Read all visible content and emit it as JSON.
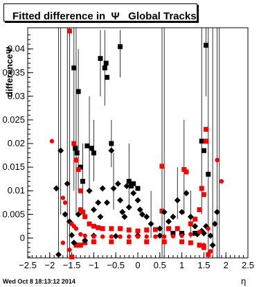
{
  "title": "Fitted difference in  Ψ   Global Tracks",
  "timestamp": "Wed Oct  8 18:13:12 2014",
  "chart_data": {
    "type": "scatter",
    "xlabel": "η",
    "ylabel": "differenceΨ",
    "xlim": [
      -2.5,
      2.5
    ],
    "ylim": [
      -0.0042,
      0.0445
    ],
    "x_ticks": [
      "−2.5",
      "−2",
      "−1.5",
      "−1",
      "−0.5",
      "0",
      "0.5",
      "1",
      "1.5",
      "2",
      "2.5"
    ],
    "y_ticks": [
      "0",
      "0.005",
      "0.01",
      "0.015",
      "0.02",
      "0.025",
      "0.03",
      "0.035",
      "0.04"
    ],
    "y_tick_values": [
      0,
      0.005,
      0.01,
      0.015,
      0.02,
      0.025,
      0.03,
      0.035,
      0.04
    ],
    "x_tick_values": [
      -2.5,
      -2,
      -1.5,
      -1,
      -0.5,
      0,
      0.5,
      1,
      1.5,
      2,
      2.5
    ],
    "series": [
      {
        "marker": "square",
        "color": "#000000",
        "points": [
          [
            -1.45,
            0.036
          ],
          [
            -1.35,
            0.031
          ],
          [
            -1.42,
            0.019
          ],
          [
            -1.38,
            0.018
          ],
          [
            -1.3,
            0.015
          ],
          [
            -1.25,
            0.012
          ],
          [
            -1.15,
            0.0195
          ],
          [
            -1.05,
            0.019
          ],
          [
            -1.0,
            0.018
          ],
          [
            -0.85,
            0.038
          ],
          [
            -0.75,
            0.036
          ],
          [
            -0.72,
            0.037
          ],
          [
            -0.7,
            0.034
          ],
          [
            -0.6,
            0.02
          ],
          [
            -0.4,
            0.0405
          ],
          [
            -0.2,
            0.012
          ],
          [
            -0.15,
            0.011
          ],
          [
            -0.1,
            0.0115
          ],
          [
            0.0,
            0.0105
          ],
          [
            1.45,
            0.0205
          ],
          [
            1.5,
            0.0185
          ],
          [
            1.55,
            0.0408
          ],
          [
            1.6,
            0.0135
          ],
          [
            1.3,
            0.001
          ],
          [
            1.0,
            0.001
          ],
          [
            0.8,
            0.001
          ]
        ]
      },
      {
        "marker": "square",
        "color": "#ff0000",
        "points": [
          [
            -1.55,
            0.0438
          ],
          [
            -1.5,
            -0.004
          ],
          [
            -1.45,
            0.02
          ],
          [
            -1.4,
            0.0165
          ],
          [
            -1.35,
            0.0145
          ],
          [
            -1.3,
            0.01
          ],
          [
            -1.25,
            0.0055
          ],
          [
            -1.3,
            0.006
          ],
          [
            -1.2,
            0.0045
          ],
          [
            -1.1,
            0.003
          ],
          [
            -1.0,
            0.0025
          ],
          [
            -0.9,
            0.0022
          ],
          [
            -0.8,
            0.002
          ],
          [
            -0.6,
            0.002
          ],
          [
            -0.4,
            0.002
          ],
          [
            -0.2,
            0.0017
          ],
          [
            0.0,
            0.0015
          ],
          [
            0.2,
            0.0017
          ],
          [
            0.4,
            0.0018
          ],
          [
            0.55,
            0.0057
          ],
          [
            0.55,
            0.0152
          ],
          [
            0.7,
            0.002
          ],
          [
            0.9,
            0.002
          ],
          [
            1.05,
            0.0145
          ],
          [
            1.1,
            0.014
          ],
          [
            1.2,
            0.003
          ],
          [
            1.3,
            0.004
          ],
          [
            1.4,
            0.006
          ],
          [
            1.45,
            0.0105
          ],
          [
            1.5,
            0.0092
          ],
          [
            1.55,
            0.023
          ],
          [
            1.55,
            0.0205
          ],
          [
            1.6,
            -0.0035
          ],
          [
            -1.4,
            -0.0015
          ],
          [
            -1.3,
            -0.0015
          ],
          [
            -1.2,
            -0.001
          ],
          [
            -1.0,
            -0.0008
          ],
          [
            -0.6,
            -0.0008
          ],
          [
            -0.2,
            -0.0008
          ],
          [
            0.2,
            -0.0008
          ],
          [
            0.6,
            -0.0008
          ],
          [
            1.0,
            -0.0008
          ],
          [
            1.2,
            -0.001
          ],
          [
            1.4,
            -0.0015
          ],
          [
            1.5,
            -0.002
          ]
        ]
      },
      {
        "marker": "diamond",
        "color": "#000000",
        "points": [
          [
            -1.85,
            0.0105
          ],
          [
            -1.75,
            0.0185
          ],
          [
            -1.8,
            -0.0035
          ],
          [
            -1.65,
            0.005
          ],
          [
            -1.6,
            0.0115
          ],
          [
            -1.55,
            0.0035
          ],
          [
            -1.45,
            -0.001
          ],
          [
            -1.35,
            0.005
          ],
          [
            -1.2,
            -0.0005
          ],
          [
            -1.1,
            0.01
          ],
          [
            -1.0,
            0.006
          ],
          [
            -0.9,
            0.0075
          ],
          [
            -0.85,
            0.0045
          ],
          [
            -0.8,
            0.0105
          ],
          [
            -0.7,
            0.0075
          ],
          [
            -0.6,
            0.0185
          ],
          [
            -0.55,
            0.0105
          ],
          [
            -0.45,
            0.0115
          ],
          [
            -0.4,
            0.008
          ],
          [
            -0.35,
            0.0055
          ],
          [
            -0.3,
            0.0045
          ],
          [
            -0.25,
            0.011
          ],
          [
            -0.2,
            0.0065
          ],
          [
            -0.1,
            0.0095
          ],
          [
            0.0,
            0.008
          ],
          [
            0.05,
            0.006
          ],
          [
            0.1,
            0.005
          ],
          [
            0.2,
            0.0045
          ],
          [
            0.3,
            0.003
          ],
          [
            0.5,
            0.002
          ],
          [
            0.6,
            0.0055
          ],
          [
            0.7,
            0.0035
          ],
          [
            0.8,
            0.0045
          ],
          [
            0.9,
            0.008
          ],
          [
            1.0,
            0.0055
          ],
          [
            1.1,
            0.0095
          ],
          [
            1.2,
            0.0045
          ],
          [
            1.3,
            0.0025
          ],
          [
            1.35,
            0.0008
          ],
          [
            1.45,
            0.0015
          ],
          [
            1.5,
            0.001
          ],
          [
            1.55,
            0.0025
          ],
          [
            1.65,
            0.0005
          ],
          [
            1.75,
            0.003
          ],
          [
            1.8,
            0.0055
          ],
          [
            1.7,
            -0.0015
          ],
          [
            -1.5,
            0.0006
          ],
          [
            -1.0,
            0.0005
          ],
          [
            -0.5,
            0.0004
          ],
          [
            0.0,
            0.0005
          ],
          [
            0.5,
            0.0005
          ],
          [
            1.0,
            0.0008
          ]
        ]
      },
      {
        "marker": "circle",
        "color": "#ff0000",
        "points": [
          [
            -1.95,
            0.0205
          ],
          [
            -1.7,
            0.0085
          ],
          [
            -1.65,
            0.0075
          ],
          [
            -1.5,
            0.003
          ],
          [
            -1.45,
            0.0025
          ],
          [
            -1.4,
            0.002
          ],
          [
            -1.3,
            0.0008
          ],
          [
            -1.2,
            0.0005
          ],
          [
            -1.0,
            0.0003
          ],
          [
            -0.8,
            0.0003
          ],
          [
            -0.6,
            0.0003
          ],
          [
            -0.4,
            0.0003
          ],
          [
            -0.2,
            0.0003
          ],
          [
            0.0,
            0.0003
          ],
          [
            0.2,
            0.0003
          ],
          [
            0.4,
            0.0003
          ],
          [
            0.6,
            0.0003
          ],
          [
            0.8,
            0.0004
          ],
          [
            1.0,
            0.0005
          ],
          [
            1.2,
            0.0008
          ],
          [
            1.4,
            0.0013
          ],
          [
            1.6,
            0.002
          ],
          [
            1.8,
            0.0165
          ],
          [
            1.9,
            0.012
          ],
          [
            -1.7,
            -0.001
          ],
          [
            -1.55,
            -0.0025
          ],
          [
            1.65,
            -0.0028
          ],
          [
            1.5,
            -0.0015
          ]
        ]
      }
    ]
  }
}
